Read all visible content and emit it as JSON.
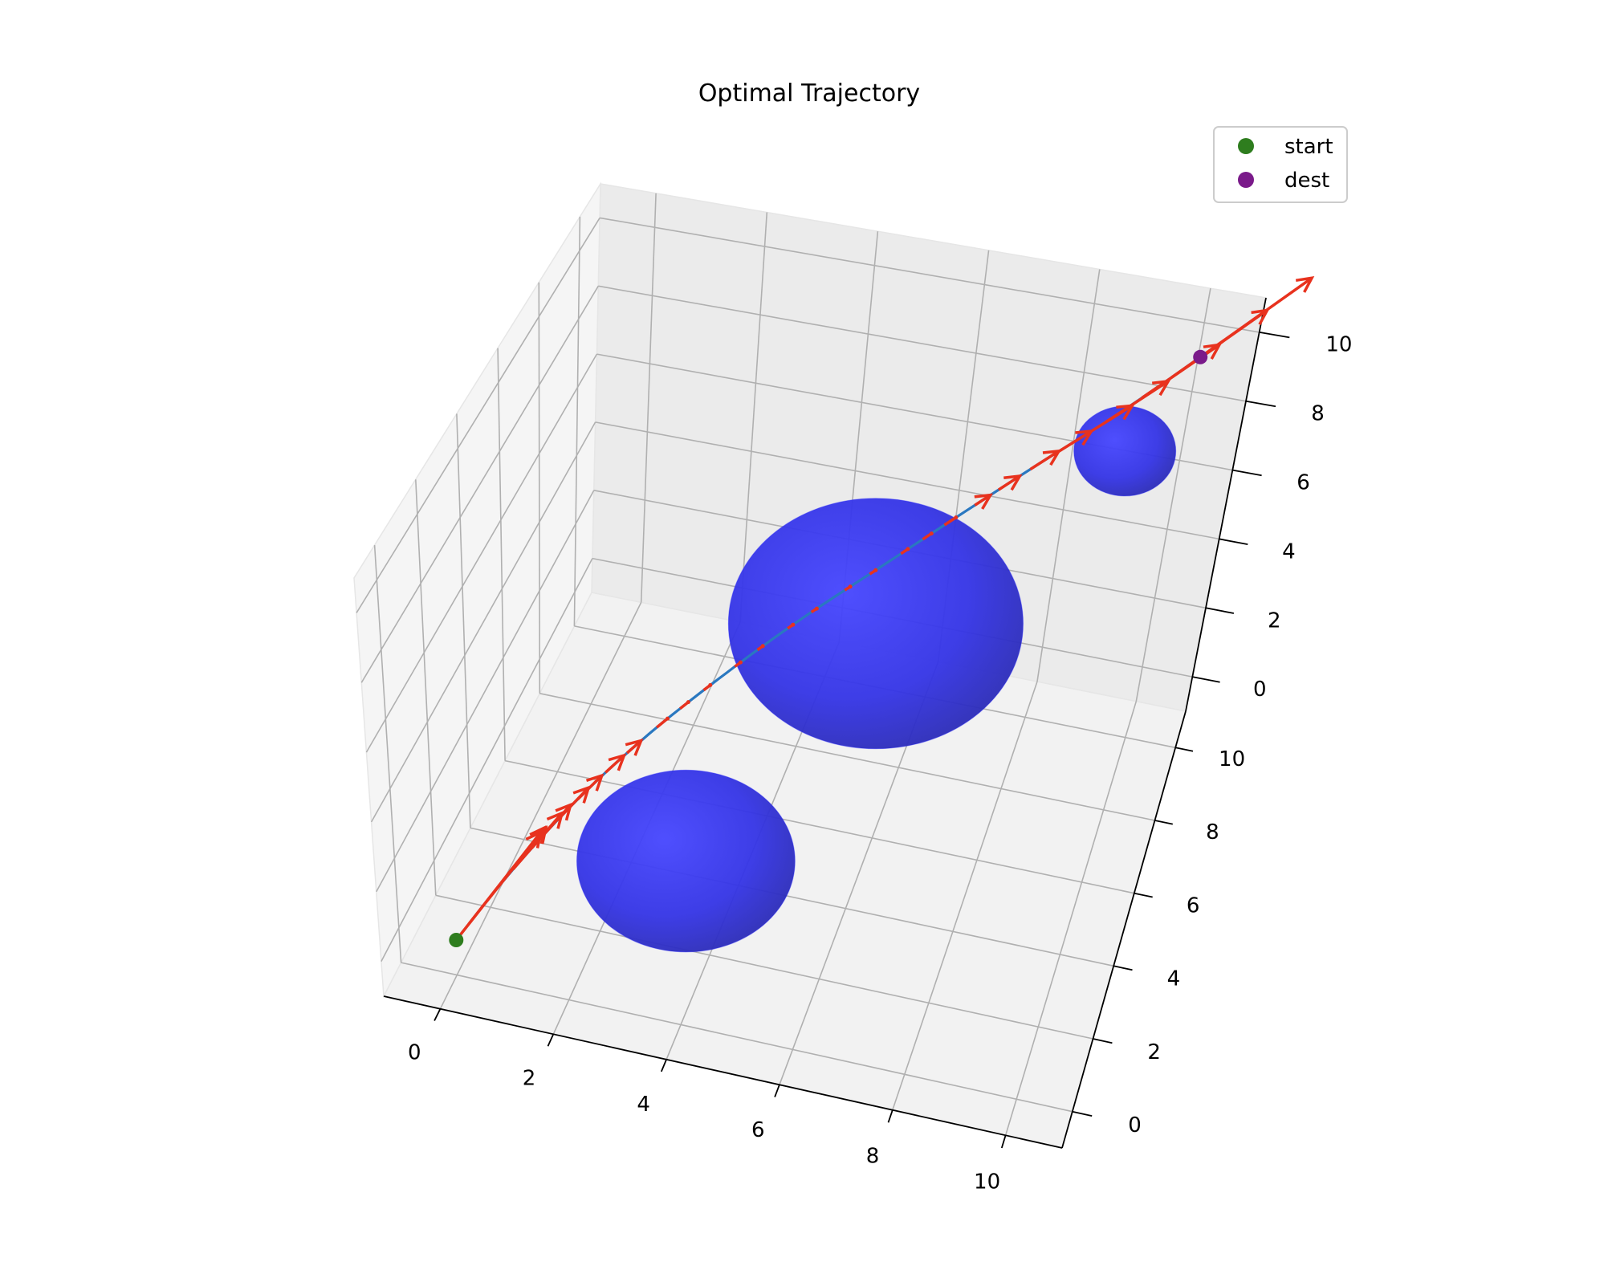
{
  "chart_data": {
    "type": "scatter",
    "projection": "3d",
    "title": "Optimal Trajectory",
    "xlabel": "",
    "ylabel": "",
    "zlabel": "",
    "xlim": [
      -1,
      11
    ],
    "ylim": [
      -1,
      11
    ],
    "zlim": [
      -1,
      11
    ],
    "x_ticks": [
      0,
      2,
      4,
      6,
      8,
      10
    ],
    "y_ticks": [
      0,
      2,
      4,
      6,
      8,
      10
    ],
    "z_ticks": [
      0,
      2,
      4,
      6,
      8,
      10
    ],
    "grid": true,
    "legend": {
      "placement": "top-right",
      "entries": [
        {
          "label": "start",
          "color": "#2e7d1e"
        },
        {
          "label": "dest",
          "color": "#7a1a8a"
        }
      ]
    },
    "start": {
      "x": 0,
      "y": 0,
      "z": 0
    },
    "dest": {
      "x": 10,
      "y": 10,
      "z": 10
    },
    "trajectory": {
      "color": "#2a78c0",
      "points": [
        [
          0.0,
          0.0,
          0.0
        ],
        [
          0.7,
          1.0,
          1.3
        ],
        [
          1.5,
          2.0,
          2.6
        ],
        [
          2.4,
          3.0,
          3.8
        ],
        [
          3.4,
          4.0,
          4.9
        ],
        [
          4.4,
          4.9,
          5.9
        ],
        [
          5.5,
          5.9,
          6.8
        ],
        [
          6.5,
          6.8,
          7.6
        ],
        [
          7.6,
          7.8,
          8.4
        ],
        [
          8.7,
          8.8,
          9.1
        ],
        [
          10.0,
          10.0,
          10.0
        ]
      ]
    },
    "control_arrows": {
      "color": "#e8321e",
      "count": 30
    },
    "obstacles": {
      "color": "#2b2bff",
      "spheres": [
        {
          "center": [
            3.5,
            1.5,
            2.0
          ],
          "radius": 1.8
        },
        {
          "center": [
            5.5,
            6.0,
            5.0
          ],
          "radius": 2.5
        },
        {
          "center": [
            9.0,
            9.0,
            8.0
          ],
          "radius": 0.9
        }
      ]
    }
  }
}
